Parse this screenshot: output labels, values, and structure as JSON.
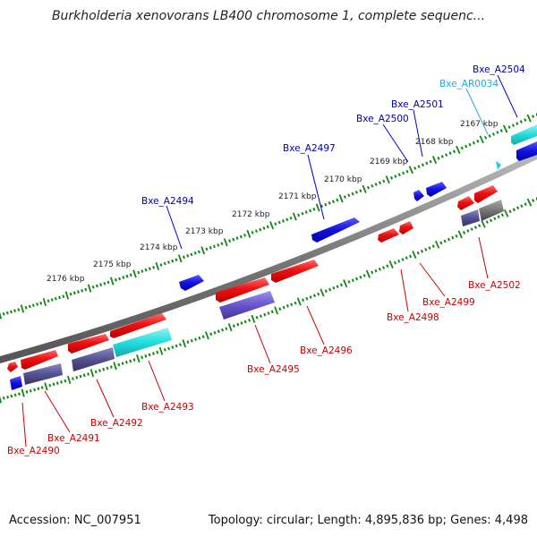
{
  "title": "Burkholderia xenovorans LB400 chromosome 1, complete sequenc...",
  "footer": {
    "accession": "Accession: NC_007951",
    "summary": "Topology: circular; Length: 4,895,836 bp; Genes: 4,498"
  },
  "colors": {
    "forward_gene": "#ee1111",
    "reverse_gene": "#1111dd",
    "rna_gene": "#22dddd",
    "pseudo_gene": "#6655cc",
    "ticks": "#118811",
    "backbone": "#888888",
    "forward_label": "#cc0000",
    "reverse_label": "#0000aa",
    "rna_label": "#22aadd"
  },
  "tick_labels": [
    "2176 kbp",
    "2175 kbp",
    "2174 kbp",
    "2173 kbp",
    "2172 kbp",
    "2171 kbp",
    "2170 kbp",
    "2169 kbp",
    "2168 kbp",
    "2167 kbp"
  ],
  "labels_top": [
    "Bxe_A2494",
    "Bxe_A2497",
    "Bxe_A2500",
    "Bxe_A2501",
    "Bxe_AR0034",
    "Bxe_A2504"
  ],
  "labels_bottom": [
    "Bxe_A2490",
    "Bxe_A2491",
    "Bxe_A2492",
    "Bxe_A2493",
    "Bxe_A2495",
    "Bxe_A2496",
    "Bxe_A2498",
    "Bxe_A2499",
    "Bxe_A2502"
  ]
}
